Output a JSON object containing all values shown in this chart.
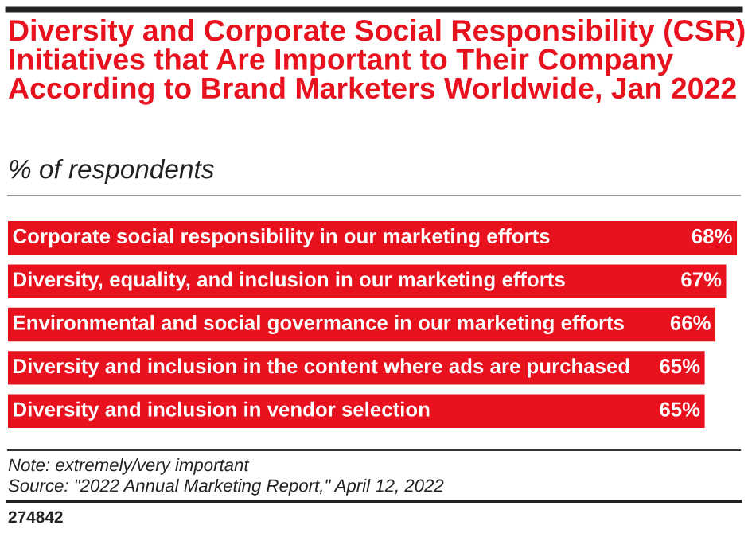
{
  "chart_data": {
    "type": "bar",
    "orientation": "horizontal",
    "title": "Diversity and Corporate Social Responsibility (CSR) Initiatives that Are Important to Their Company According to Brand Marketers Worldwide, Jan 2022",
    "subtitle": "% of respondents",
    "categories": [
      "Corporate social responsibility in our marketing efforts",
      "Diversity, equality, and inclusion in our marketing efforts",
      "Environmental and social govermance in our marketing efforts",
      "Diversity and inclusion in the content where ads are purchased",
      "Diversity and inclusion in vendor selection"
    ],
    "values": [
      68,
      67,
      66,
      65,
      65
    ],
    "value_labels": [
      "68%",
      "67%",
      "66%",
      "65%",
      "65%"
    ],
    "color": "#e8111e",
    "tick_labels": false,
    "annotations": [
      "Note: extremely/very important",
      "Source: \"2022 Annual Marketing Report,\" April 12, 2022",
      "274842"
    ]
  }
}
